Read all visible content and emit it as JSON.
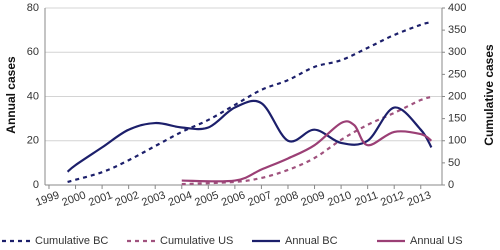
{
  "chart_data": {
    "type": "line",
    "y_label": "Annual cases",
    "y2_label": "Cumulative cases",
    "xlim": [
      1998.85,
      2013.8
    ],
    "xticks": [
      1999,
      2000,
      2001,
      2002,
      2003,
      2004,
      2005,
      2006,
      2007,
      2008,
      2009,
      2010,
      2011,
      2012,
      2013
    ],
    "ylim": [
      0,
      80
    ],
    "yticks": [
      0,
      20,
      40,
      60,
      80
    ],
    "y2lim": [
      0,
      400
    ],
    "y2ticks": [
      0,
      50,
      100,
      150,
      200,
      250,
      300,
      350,
      400
    ],
    "grid": true,
    "legend": "bottom",
    "series": [
      {
        "name": "Cumulative BC",
        "color": "#1c1f6b",
        "dashed": true,
        "axis": "y2",
        "x": [
          1999.7,
          2001,
          2002,
          2003,
          2004,
          2005,
          2006,
          2007,
          2008,
          2009,
          2010,
          2011,
          2012,
          2013,
          2013.4
        ],
        "values": [
          7,
          29,
          56,
          88,
          120,
          147,
          181,
          215,
          237,
          267,
          282,
          310,
          339,
          362,
          368
        ]
      },
      {
        "name": "Cumulative US",
        "color": "#a0527e",
        "dashed": true,
        "axis": "y2",
        "x": [
          2004,
          2006,
          2007,
          2008,
          2009,
          2010,
          2011,
          2012,
          2013,
          2013.4
        ],
        "values": [
          2,
          7,
          16,
          34,
          61,
          102,
          136,
          163,
          192,
          199
        ]
      },
      {
        "name": "Annual BC",
        "color": "#1c1f6b",
        "dashed": false,
        "x": [
          1999.7,
          2000,
          2001,
          2002,
          2003,
          2004,
          2005,
          2006,
          2007,
          2008,
          2009,
          2010,
          2011,
          2012,
          2013,
          2013.4
        ],
        "values": [
          6,
          9,
          17,
          25,
          28,
          26,
          26,
          35,
          37,
          20,
          25,
          19,
          20,
          35,
          25,
          17
        ]
      },
      {
        "name": "Annual US",
        "color": "#9b3f75",
        "dashed": false,
        "x": [
          2004,
          2006,
          2007,
          2008,
          2009,
          2010,
          2010.5,
          2011,
          2012,
          2013,
          2013.4
        ],
        "values": [
          2,
          2,
          7,
          12,
          18,
          28,
          27,
          18,
          24,
          23,
          20
        ]
      }
    ]
  }
}
